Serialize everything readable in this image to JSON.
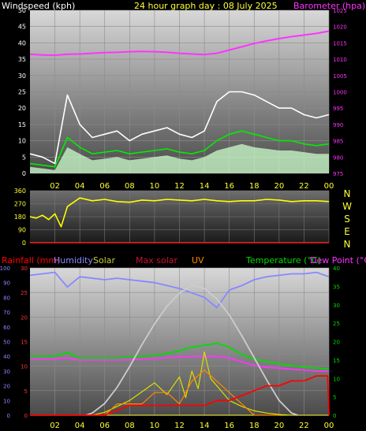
{
  "chart_data": [
    {
      "type": "line",
      "title": "24 hour graph day : 08 July 2025",
      "ylabel_left": "Windspeed (kph)",
      "ylabel_right": "Barometer (hpa)",
      "x_ticks": [
        "02",
        "04",
        "06",
        "08",
        "10",
        "12",
        "14",
        "16",
        "18",
        "20",
        "22",
        "00"
      ],
      "y_left_ticks": [
        "0",
        "5",
        "10",
        "15",
        "20",
        "25",
        "30",
        "35",
        "40",
        "45",
        "50"
      ],
      "y_right_ticks": [
        "975",
        "980",
        "985",
        "990",
        "995",
        "1000",
        "1005",
        "1010",
        "1015",
        "1020",
        "1025"
      ],
      "ylim_left": [
        0,
        50
      ],
      "ylim_right": [
        975,
        1025
      ],
      "series": [
        {
          "name": "Barometer (hpa)",
          "color": "#ff33ff",
          "x": [
            0,
            1,
            2,
            3,
            4,
            5,
            6,
            7,
            8,
            9,
            10,
            11,
            12,
            13,
            14,
            15,
            16,
            17,
            18,
            19,
            20,
            21,
            22,
            23,
            24
          ],
          "y": [
            1011.5,
            1011.3,
            1011.2,
            1011.5,
            1011.6,
            1011.8,
            1012.0,
            1012.1,
            1012.3,
            1012.4,
            1012.3,
            1012.1,
            1011.8,
            1011.6,
            1011.4,
            1011.8,
            1012.8,
            1013.8,
            1014.8,
            1015.6,
            1016.3,
            1016.9,
            1017.4,
            1017.9,
            1018.6
          ]
        },
        {
          "name": "Gust",
          "color": "#ffffff",
          "x": [
            0,
            1,
            2,
            3,
            4,
            5,
            6,
            7,
            8,
            9,
            10,
            11,
            12,
            13,
            14,
            15,
            16,
            17,
            18,
            19,
            20,
            21,
            22,
            23,
            24
          ],
          "y": [
            6,
            5,
            3,
            24,
            15,
            11,
            12,
            13,
            10,
            12,
            13,
            14,
            12,
            11,
            13,
            22,
            25,
            25,
            24,
            22,
            20,
            20,
            18,
            17,
            18
          ]
        },
        {
          "name": "Wind average",
          "color": "#00ee00",
          "x": [
            0,
            1,
            2,
            3,
            4,
            5,
            6,
            7,
            8,
            9,
            10,
            11,
            12,
            13,
            14,
            15,
            16,
            17,
            18,
            19,
            20,
            21,
            22,
            23,
            24
          ],
          "y": [
            3,
            2.5,
            2,
            11,
            8,
            6,
            6.5,
            7,
            6,
            6.5,
            7,
            7.5,
            6.5,
            6,
            7,
            10,
            12,
            13,
            12,
            11,
            10,
            10,
            9,
            8.5,
            9
          ]
        },
        {
          "name": "Wind speed",
          "color": "#ccffcc",
          "x": [
            0,
            1,
            2,
            3,
            4,
            5,
            6,
            7,
            8,
            9,
            10,
            11,
            12,
            13,
            14,
            15,
            16,
            17,
            18,
            19,
            20,
            21,
            22,
            23,
            24
          ],
          "y": [
            2,
            1.5,
            1,
            8,
            6,
            4,
            4.5,
            5,
            4,
            4.5,
            5,
            5.5,
            4.5,
            4,
            5,
            7,
            8,
            9,
            8,
            7.5,
            7,
            7,
            6.5,
            6,
            6
          ]
        }
      ]
    },
    {
      "type": "line",
      "title": "",
      "y_ticks": [
        "0",
        "90",
        "180",
        "270",
        "360"
      ],
      "right_labels": [
        "N",
        "W",
        "S",
        "E",
        "N"
      ],
      "ylim": [
        0,
        360
      ],
      "x": [
        0,
        0.5,
        1,
        1.5,
        2,
        2.5,
        3,
        3.5,
        4,
        5,
        6,
        7,
        8,
        9,
        10,
        11,
        12,
        13,
        14,
        15,
        16,
        17,
        18,
        19,
        20,
        21,
        22,
        23,
        24
      ],
      "y": [
        180,
        170,
        190,
        160,
        200,
        110,
        250,
        280,
        310,
        290,
        300,
        285,
        280,
        295,
        290,
        300,
        295,
        290,
        300,
        290,
        285,
        290,
        290,
        300,
        295,
        285,
        290,
        290,
        285
      ],
      "color": "#ffff00"
    },
    {
      "type": "line",
      "legend": [
        {
          "text": "Rainfall (mm)",
          "color": "#ff0000"
        },
        {
          "text": "Humidity",
          "color": "#8888ff"
        },
        {
          "text": "Solar",
          "color": "#cccc33"
        },
        {
          "text": "Max solar",
          "color": "#cc1133"
        },
        {
          "text": "UV",
          "color": "#ff8800"
        },
        {
          "text": "Temperature (°C)",
          "color": "#00dd00"
        },
        {
          "text": "Dew Point (°C)",
          "color": "#ff33ff"
        }
      ],
      "y_humidity_ticks": [
        "0",
        "10",
        "20",
        "30",
        "40",
        "50",
        "60",
        "70",
        "80",
        "90",
        "100"
      ],
      "y_rain_ticks": [
        "0",
        "5",
        "10",
        "15",
        "20",
        "25",
        "30"
      ],
      "y_temp_ticks": [
        "0",
        "5",
        "10",
        "15",
        "20",
        "25",
        "30",
        "35",
        "40"
      ],
      "x_ticks": [
        "02",
        "04",
        "06",
        "08",
        "10",
        "12",
        "14",
        "16",
        "18",
        "20",
        "22",
        "00"
      ],
      "series": [
        {
          "name": "Humidity",
          "color": "#8888ff",
          "ylim": [
            0,
            100
          ],
          "x": [
            0,
            1,
            2,
            3,
            4,
            5,
            6,
            7,
            8,
            9,
            10,
            11,
            12,
            13,
            14,
            15,
            16,
            17,
            18,
            19,
            20,
            21,
            22,
            23,
            24
          ],
          "y": [
            95,
            96,
            97,
            87,
            94,
            93,
            92,
            93,
            92,
            91,
            90,
            88,
            86,
            83,
            80,
            73,
            85,
            88,
            92,
            94,
            95,
            96,
            96,
            97,
            94
          ]
        },
        {
          "name": "Temperature (°C)",
          "color": "#00dd00",
          "ylim": [
            0,
            40
          ],
          "x": [
            0,
            1,
            2,
            3,
            4,
            5,
            6,
            7,
            8,
            9,
            10,
            11,
            12,
            13,
            14,
            15,
            16,
            17,
            18,
            19,
            20,
            21,
            22,
            23,
            24
          ],
          "y": [
            16,
            16,
            16,
            17,
            15.5,
            15.5,
            15.5,
            15.5,
            15.8,
            16,
            16.2,
            16.8,
            17.5,
            18.5,
            19,
            19.5,
            18.5,
            16.5,
            15.2,
            14.5,
            14,
            13.5,
            13,
            12.8,
            12.5
          ]
        },
        {
          "name": "Dew Point (°C)",
          "color": "#ff33ff",
          "ylim": [
            0,
            40
          ],
          "x": [
            0,
            1,
            2,
            3,
            4,
            5,
            6,
            7,
            8,
            9,
            10,
            11,
            12,
            13,
            14,
            15,
            16,
            17,
            18,
            19,
            20,
            21,
            22,
            23,
            24
          ],
          "y": [
            15.3,
            15.3,
            15.3,
            15.5,
            15,
            15,
            15,
            15,
            15.1,
            15.2,
            15.4,
            15.6,
            15.8,
            16,
            16,
            16,
            15.5,
            14.5,
            13.5,
            13,
            12.8,
            12.5,
            12.3,
            12,
            12
          ]
        },
        {
          "name": "Max solar",
          "color": "#cccccc",
          "ylim": [
            0,
            1000
          ],
          "x": [
            4.5,
            5,
            6,
            7,
            8,
            9,
            10,
            11,
            12,
            13,
            14,
            15,
            16,
            17,
            18,
            19,
            20,
            21,
            21.5
          ],
          "y": [
            0,
            15,
            80,
            190,
            330,
            480,
            620,
            740,
            830,
            880,
            860,
            790,
            680,
            540,
            390,
            240,
            100,
            15,
            0
          ]
        },
        {
          "name": "Solar",
          "color": "#dddd00",
          "ylim": [
            0,
            1000
          ],
          "x": [
            5,
            6,
            7,
            8,
            9,
            10,
            11,
            12,
            12.5,
            13,
            13.5,
            14,
            14.5,
            15,
            16,
            17,
            18,
            19,
            20,
            21
          ],
          "y": [
            0,
            20,
            60,
            100,
            160,
            220,
            140,
            260,
            120,
            300,
            180,
            430,
            250,
            200,
            100,
            60,
            30,
            15,
            5,
            0
          ]
        },
        {
          "name": "UV",
          "color": "#ff8800",
          "ylim": [
            0,
            13
          ],
          "x": [
            5,
            6,
            7,
            8,
            9,
            10,
            11,
            12,
            13,
            14,
            15,
            16,
            17,
            18,
            19,
            20
          ],
          "y": [
            0,
            0,
            1,
            1,
            1,
            2,
            2,
            1,
            3,
            4,
            3,
            2,
            1,
            0,
            0,
            0
          ]
        },
        {
          "name": "Rainfall (mm)",
          "color": "#ff0000",
          "ylim": [
            0,
            30
          ],
          "x": [
            0,
            5,
            6,
            7,
            8,
            9,
            10,
            12,
            14,
            15,
            16,
            17,
            18,
            19,
            20,
            21,
            22,
            23,
            23.9,
            24
          ],
          "y": [
            0,
            0,
            0,
            1,
            2,
            2,
            2,
            2,
            2,
            3,
            3,
            4,
            5,
            6,
            6,
            7,
            7,
            8,
            8,
            0
          ]
        }
      ]
    }
  ]
}
